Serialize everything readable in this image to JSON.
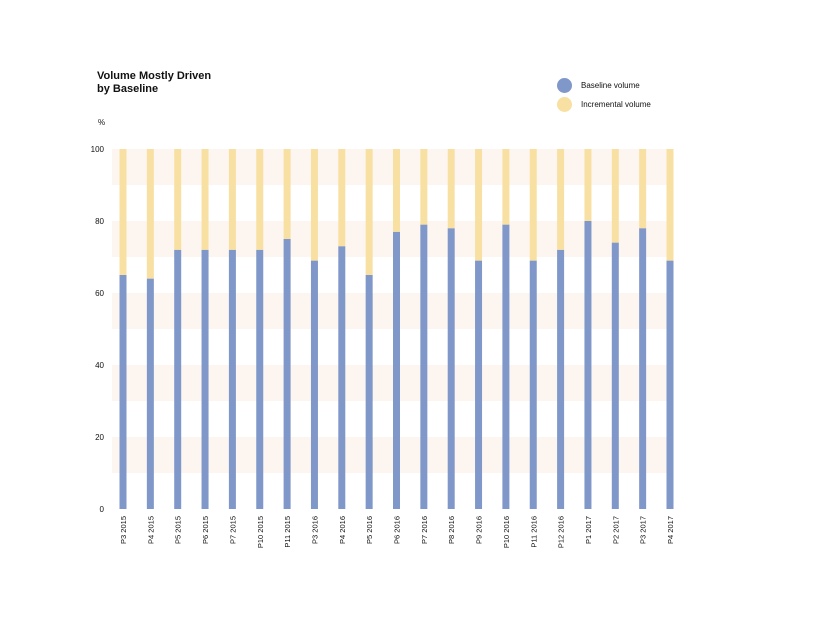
{
  "chart_data": {
    "type": "bar",
    "stacked": true,
    "title_line1": "Volume Mostly Driven",
    "title_line2": "by Baseline",
    "ylabel": "%",
    "ylim": [
      0,
      100
    ],
    "yticks": [
      0,
      20,
      40,
      60,
      80,
      100
    ],
    "grid": "horizontal bands",
    "legend_position": "top-right",
    "categories": [
      "P3 2015",
      "P4 2015",
      "P5 2015",
      "P6 2015",
      "P7 2015",
      "P10 2015",
      "P11 2015",
      "P3 2016",
      "P4 2016",
      "P5 2016",
      "P6 2016",
      "P7 2016",
      "P8 2016",
      "P9 2016",
      "P10 2016",
      "P11 2016",
      "P12 2016",
      "P1 2017",
      "P2 2017",
      "P3 2017",
      "P4 2017"
    ],
    "series": [
      {
        "name": "Baseline volume",
        "color": "#7f97c9",
        "values": [
          65,
          64,
          72,
          72,
          72,
          72,
          75,
          69,
          73,
          65,
          77,
          79,
          78,
          69,
          79,
          69,
          72,
          80,
          74,
          78,
          69
        ]
      },
      {
        "name": "Incremental volume",
        "color": "#f8e0a2",
        "values": [
          35,
          36,
          28,
          28,
          28,
          28,
          25,
          31,
          27,
          35,
          23,
          21,
          22,
          31,
          21,
          31,
          28,
          20,
          26,
          22,
          31
        ]
      }
    ],
    "band_color": "#fdf6f0"
  }
}
